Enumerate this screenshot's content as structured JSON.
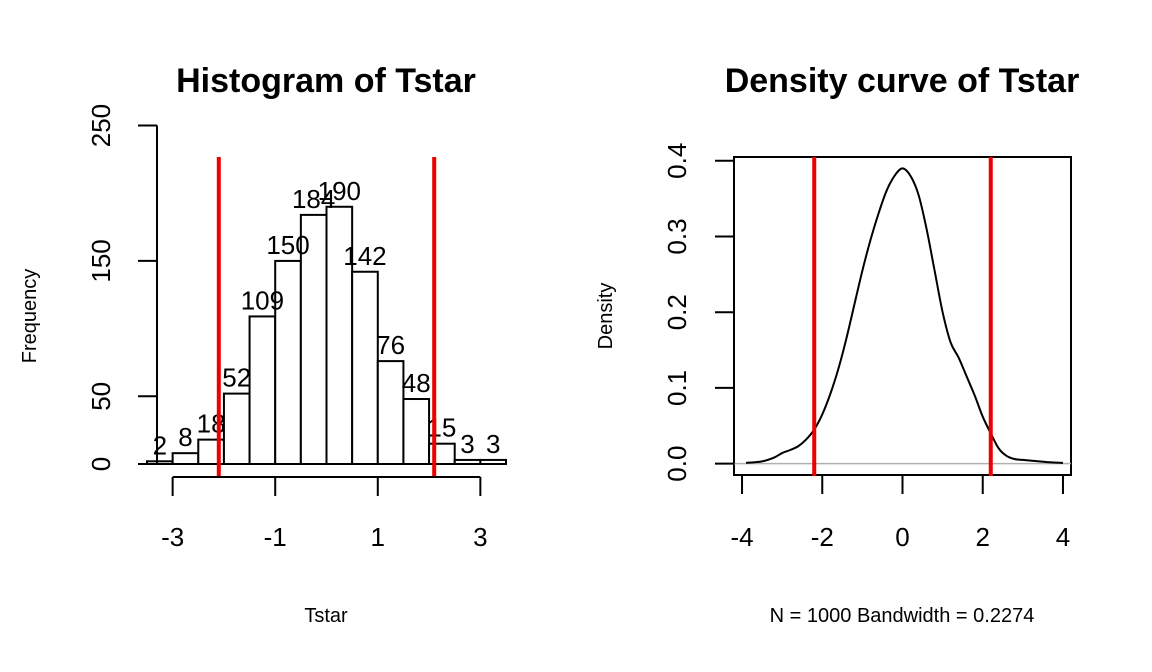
{
  "chart_data": [
    {
      "type": "bar",
      "title": "Histogram of Tstar",
      "xlabel": "Tstar",
      "ylabel": "Frequency",
      "bin_edges": [
        -3.5,
        -3.0,
        -2.5,
        -2.0,
        -1.5,
        -1.0,
        -0.5,
        0.0,
        0.5,
        1.0,
        1.5,
        2.0,
        2.5,
        3.0,
        3.5
      ],
      "values": [
        2,
        8,
        18,
        52,
        109,
        150,
        184,
        190,
        142,
        76,
        48,
        15,
        3,
        3
      ],
      "data_labels": [
        "2",
        "8",
        "18",
        "52",
        "109",
        "150",
        "184",
        "190",
        "142",
        "76",
        "48",
        "15",
        "3",
        "3"
      ],
      "xlim": [
        -3.5,
        3.5
      ],
      "ylim": [
        0,
        260
      ],
      "x_ticks": [
        -3,
        -1,
        1,
        3
      ],
      "x_tick_labels": [
        "-3",
        "-1",
        "1",
        "3"
      ],
      "y_ticks": [
        0,
        50,
        150,
        250
      ],
      "y_tick_labels": [
        "0",
        "50",
        "150",
        "250"
      ],
      "vlines": [
        -2.1,
        2.1
      ],
      "vline_color": "#ee0000"
    },
    {
      "type": "line",
      "title": "Density curve of Tstar",
      "xlabel": "N = 1000   Bandwidth = 0.2274",
      "ylabel": "Density",
      "x": [
        -3.9,
        -3.5,
        -3.2,
        -3.0,
        -2.8,
        -2.6,
        -2.4,
        -2.2,
        -2.0,
        -1.8,
        -1.6,
        -1.4,
        -1.2,
        -1.0,
        -0.8,
        -0.6,
        -0.4,
        -0.2,
        0.0,
        0.2,
        0.4,
        0.6,
        0.8,
        1.0,
        1.2,
        1.4,
        1.6,
        1.8,
        2.0,
        2.2,
        2.4,
        2.6,
        2.8,
        3.0,
        3.2,
        3.6,
        4.0
      ],
      "y": [
        0.001,
        0.003,
        0.008,
        0.014,
        0.018,
        0.023,
        0.032,
        0.045,
        0.065,
        0.092,
        0.125,
        0.165,
        0.21,
        0.255,
        0.295,
        0.33,
        0.36,
        0.38,
        0.39,
        0.38,
        0.355,
        0.31,
        0.255,
        0.2,
        0.16,
        0.14,
        0.115,
        0.09,
        0.062,
        0.04,
        0.02,
        0.01,
        0.006,
        0.005,
        0.004,
        0.002,
        0.001
      ],
      "xlim": [
        -4.2,
        4.2
      ],
      "ylim": [
        -0.015,
        0.405
      ],
      "x_ticks": [
        -4,
        -2,
        0,
        2,
        4
      ],
      "x_tick_labels": [
        "-4",
        "-2",
        "0",
        "2",
        "4"
      ],
      "y_ticks": [
        0.0,
        0.1,
        0.2,
        0.3,
        0.4
      ],
      "y_tick_labels": [
        "0.0",
        "0.1",
        "0.2",
        "0.3",
        "0.4"
      ],
      "vlines": [
        -2.2,
        2.2
      ],
      "vline_color": "#ee0000",
      "zero_line_color": "#b0b0b0"
    }
  ]
}
